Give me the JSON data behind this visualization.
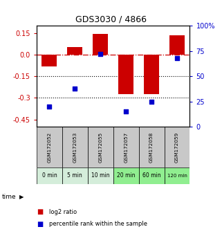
{
  "title": "GDS3030 / 4866",
  "samples": [
    "GSM172052",
    "GSM172053",
    "GSM172055",
    "GSM172057",
    "GSM172058",
    "GSM172059"
  ],
  "time_labels": [
    "0 min",
    "5 min",
    "10 min",
    "20 min",
    "60 min",
    "120 min"
  ],
  "log2_ratio": [
    -0.08,
    0.05,
    0.145,
    -0.275,
    -0.275,
    0.135
  ],
  "percentile_rank": [
    20,
    38,
    72,
    15,
    25,
    68
  ],
  "ylim_left": [
    -0.5,
    0.2
  ],
  "ylim_right": [
    0,
    100
  ],
  "yticks_left": [
    0.15,
    0.0,
    -0.15,
    -0.3,
    -0.45
  ],
  "yticks_right": [
    100,
    75,
    50,
    25,
    0
  ],
  "bar_color": "#cc0000",
  "dot_color": "#0000cc",
  "bar_width": 0.6,
  "dotted_lines": [
    -0.15,
    -0.3
  ],
  "time_colors": [
    "#d4edda",
    "#d4edda",
    "#d4edda",
    "#90ee90",
    "#90ee90",
    "#90ee90"
  ],
  "label_log2": "log2 ratio",
  "label_pct": "percentile rank within the sample",
  "background_gray": "#c8c8c8",
  "fig_bg": "#ffffff"
}
